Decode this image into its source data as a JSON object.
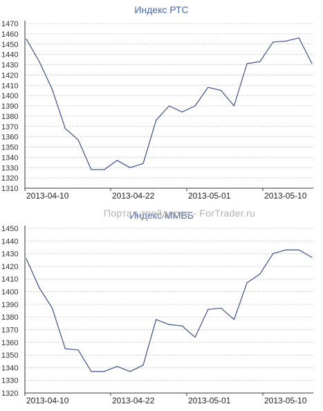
{
  "watermark": "Портал трейдеров - ForTrader.ru",
  "chart_data": [
    {
      "type": "line",
      "title": "Индекс РТС",
      "xlabel": "",
      "ylabel": "",
      "ylim": [
        1310,
        1470
      ],
      "yticks": [
        1310,
        1320,
        1330,
        1340,
        1350,
        1360,
        1370,
        1380,
        1390,
        1400,
        1410,
        1420,
        1430,
        1440,
        1450,
        1460,
        1470
      ],
      "x_tick_labels": [
        "2013-04-10",
        "2013-04-22",
        "2013-05-01",
        "2013-05-10"
      ],
      "grid": true,
      "colors": {
        "line": "#3a4f8c",
        "grid": "#cccccc",
        "axis": "#333333"
      },
      "series": [
        {
          "values": [
            1455,
            1433,
            1406,
            1368,
            1357,
            1328,
            1328,
            1337,
            1330,
            1334,
            1376,
            1390,
            1384,
            1390,
            1408,
            1405,
            1390,
            1431,
            1433,
            1452,
            1453,
            1456,
            1431
          ]
        }
      ]
    },
    {
      "type": "line",
      "title": "Индекс ММВБ",
      "xlabel": "",
      "ylabel": "",
      "ylim": [
        1320,
        1450
      ],
      "yticks": [
        1320,
        1330,
        1340,
        1350,
        1360,
        1370,
        1380,
        1390,
        1400,
        1410,
        1420,
        1430,
        1440,
        1450
      ],
      "x_tick_labels": [
        "2013-04-10",
        "2013-04-22",
        "2013-05-01",
        "2013-05-10"
      ],
      "grid": true,
      "colors": {
        "line": "#3a4f8c",
        "grid": "#cccccc",
        "axis": "#333333"
      },
      "series": [
        {
          "values": [
            1426,
            1403,
            1387,
            1355,
            1354,
            1337,
            1337,
            1341,
            1337,
            1342,
            1378,
            1374,
            1373,
            1364,
            1386,
            1387,
            1378,
            1407,
            1414,
            1430,
            1433,
            1433,
            1427
          ]
        }
      ]
    }
  ]
}
